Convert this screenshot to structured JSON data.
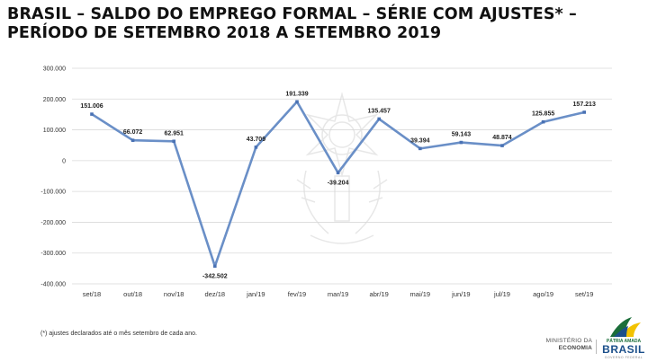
{
  "title_lines": [
    "BRASIL – SALDO DO EMPREGO FORMAL – SÉRIE COM AJUSTES* –",
    "PERÍODO DE SETEMBRO 2018 A SETEMBRO 2019"
  ],
  "footnote": "(*) ajustes declarados até o mês setembro de cada ano.",
  "footer": {
    "ministry_line1": "MINISTÉRIO DA",
    "ministry_line2": "ECONOMIA",
    "brand_line1": "PÁTRIA AMADA",
    "brand_line2": "BRASIL",
    "brand_line3": "GOVERNO FEDERAL"
  },
  "colors": {
    "series": "#6a8fc7",
    "marker": "#4a72b4",
    "grid": "#d9d9d9",
    "axis_text": "#333333",
    "brand_green": "#1b6e3a",
    "brand_yellow": "#f2c200",
    "brand_blue": "#1b4f8a"
  },
  "chart_data": {
    "type": "line",
    "categories": [
      "set/18",
      "out/18",
      "nov/18",
      "dez/18",
      "jan/19",
      "fev/19",
      "mar/19",
      "abr/19",
      "mai/19",
      "jun/19",
      "jul/19",
      "ago/19",
      "set/19"
    ],
    "values": [
      151006,
      66072,
      62951,
      -342502,
      43709,
      191339,
      -39204,
      135457,
      39394,
      59143,
      48874,
      125855,
      157213
    ],
    "data_labels": [
      "151.006",
      "66.072",
      "62.951",
      "-342.502",
      "43.709",
      "191.339",
      "-39.204",
      "135.457",
      "39.394",
      "59.143",
      "48.874",
      "125.855",
      "157.213"
    ],
    "ylim": [
      -400000,
      300000
    ],
    "yticks": [
      300000,
      200000,
      100000,
      0,
      -100000,
      -200000,
      -300000,
      -400000
    ],
    "ytick_labels": [
      "300.000",
      "200.000",
      "100.000",
      "0",
      "-100.000",
      "-200.000",
      "-300.000",
      "-400.000"
    ],
    "grid": "horizontal",
    "legend": "none",
    "title": "",
    "xlabel": "",
    "ylabel": ""
  }
}
